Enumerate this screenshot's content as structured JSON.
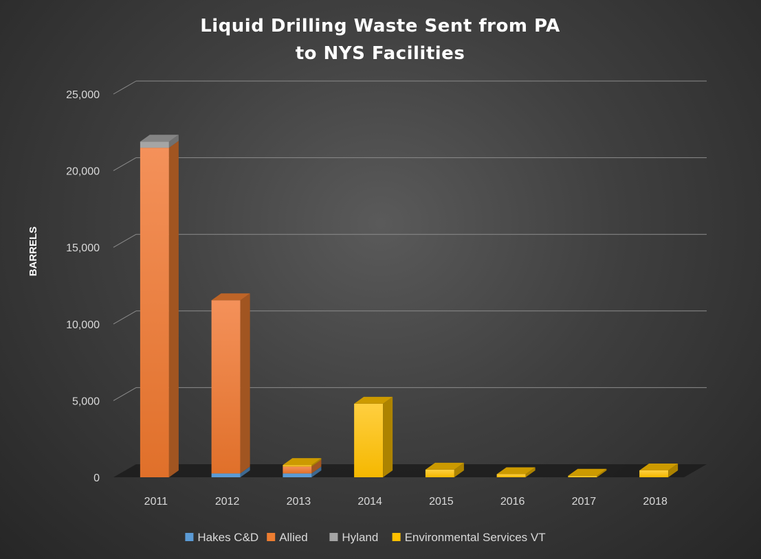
{
  "chart_data": {
    "type": "bar",
    "stacked": true,
    "title": "Liquid Drilling Waste Sent from PA",
    "subtitle": "to NYS Facilities",
    "ylabel": "BARRELS",
    "ylim": [
      0,
      25000
    ],
    "yticks": [
      0,
      5000,
      10000,
      15000,
      20000,
      25000
    ],
    "ytick_labels": [
      "0",
      "5,000",
      "10,000",
      "15,000",
      "20,000",
      "25,000"
    ],
    "categories": [
      "2011",
      "2012",
      "2013",
      "2014",
      "2015",
      "2016",
      "2017",
      "2018"
    ],
    "series": [
      {
        "name": "Hakes C&D",
        "color": "#5b9bd5",
        "values": [
          0,
          250,
          250,
          0,
          0,
          0,
          0,
          0
        ]
      },
      {
        "name": "Allied",
        "color": "#ed7d31",
        "values": [
          21500,
          11300,
          450,
          0,
          0,
          0,
          0,
          0
        ]
      },
      {
        "name": "Hyland",
        "color": "#a5a5a5",
        "values": [
          400,
          0,
          0,
          0,
          0,
          0,
          0,
          0
        ]
      },
      {
        "name": "Environmental Services VT",
        "color": "#ffc000",
        "values": [
          0,
          0,
          100,
          4800,
          500,
          200,
          100,
          450
        ]
      }
    ],
    "grid": true,
    "legend_position": "bottom"
  }
}
